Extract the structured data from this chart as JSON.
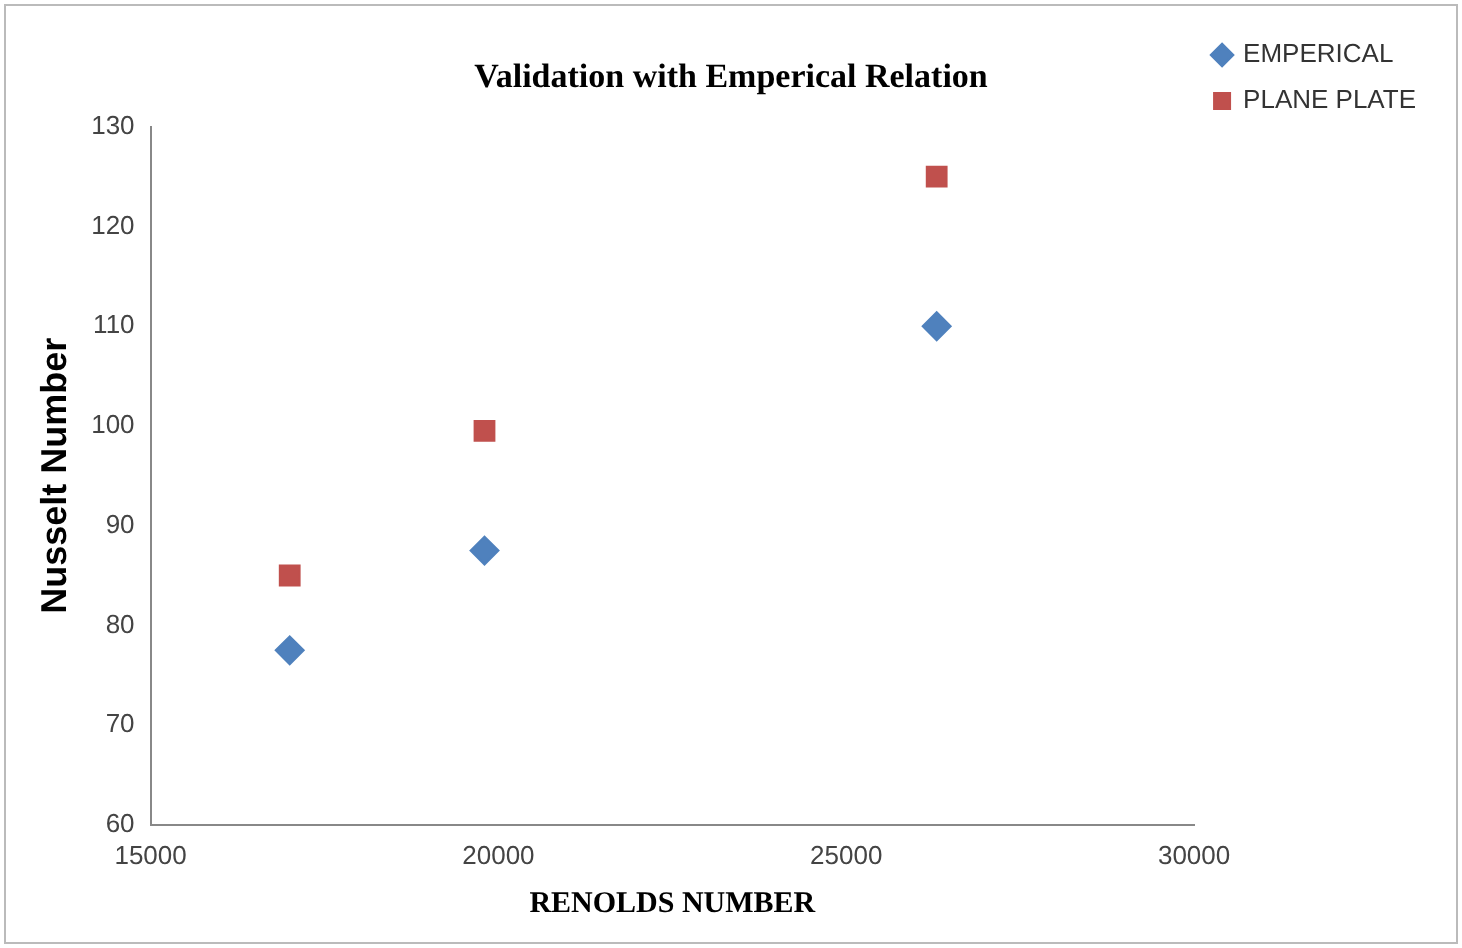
{
  "chart_data": {
    "type": "scatter",
    "title": "Validation with Emperical Relation",
    "xlabel": "RENOLDS NUMBER",
    "ylabel": "Nusselt Number",
    "series": [
      {
        "name": "EMPERICAL",
        "color": "#4f81bd",
        "marker": "diamond",
        "x": [
          17000,
          19800,
          26300
        ],
        "values": [
          77.5,
          87.5,
          110
        ]
      },
      {
        "name": "PLANE PLATE",
        "color": "#c0504d",
        "marker": "square",
        "x": [
          17000,
          19800,
          26300
        ],
        "values": [
          85,
          99.5,
          125
        ]
      }
    ],
    "xlim": [
      15000,
      30000
    ],
    "xticks": [
      15000,
      20000,
      25000,
      30000
    ],
    "ylim": [
      60,
      130
    ],
    "yticks": [
      60,
      70,
      80,
      90,
      100,
      110,
      120,
      130
    ],
    "grid": false,
    "legend": "top right"
  }
}
